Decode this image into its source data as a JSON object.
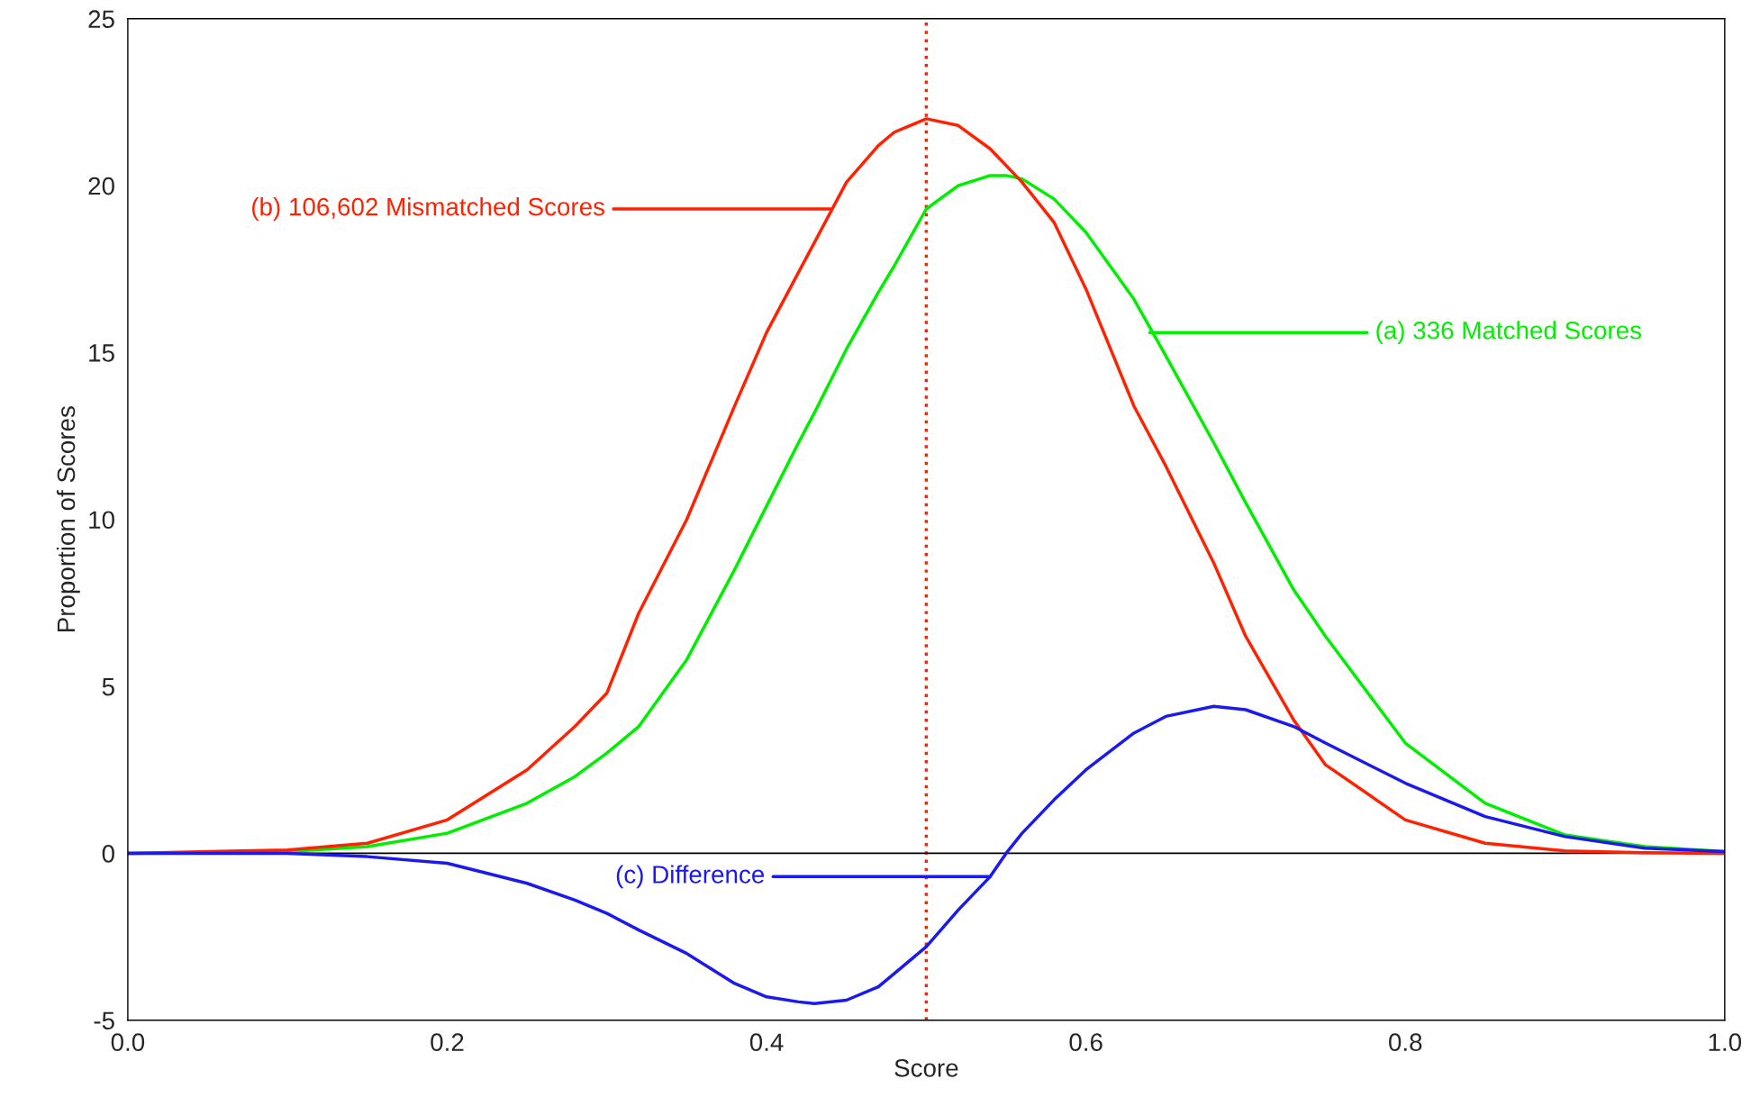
{
  "chart_data": {
    "type": "line",
    "xlabel": "Score",
    "ylabel": "Proportion of Scores",
    "x": [
      0,
      0.1,
      0.15,
      0.2,
      0.25,
      0.28,
      0.3,
      0.32,
      0.35,
      0.38,
      0.4,
      0.42,
      0.43,
      0.45,
      0.47,
      0.48,
      0.5,
      0.52,
      0.54,
      0.55,
      0.56,
      0.58,
      0.6,
      0.63,
      0.65,
      0.68,
      0.7,
      0.73,
      0.75,
      0.8,
      0.85,
      0.9,
      0.95,
      1.0
    ],
    "series": [
      {
        "color": "#00ee00",
        "values": [
          0,
          0.05,
          0.2,
          0.6,
          1.5,
          2.3,
          3.0,
          3.8,
          5.8,
          8.5,
          10.4,
          12.3,
          13.2,
          15.1,
          16.8,
          17.6,
          19.3,
          20.0,
          20.3,
          20.3,
          20.2,
          19.6,
          18.6,
          16.6,
          14.9,
          12.3,
          10.5,
          7.9,
          6.5,
          3.3,
          1.5,
          0.55,
          0.2,
          0.05
        ]
      },
      {
        "color": "#ff2200",
        "values": [
          0,
          0.1,
          0.3,
          1.0,
          2.5,
          3.8,
          4.8,
          7.2,
          10.0,
          13.4,
          15.6,
          17.4,
          18.3,
          20.1,
          21.2,
          21.6,
          22.0,
          21.8,
          21.1,
          20.6,
          20.1,
          18.9,
          16.9,
          13.4,
          11.6,
          8.7,
          6.5,
          4.0,
          2.65,
          1.0,
          0.3,
          0.07,
          0.02,
          0
        ]
      },
      {
        "color": "#1a1aee",
        "values": [
          0,
          0,
          -0.1,
          -0.3,
          -0.9,
          -1.4,
          -1.8,
          -2.3,
          -3.0,
          -3.9,
          -4.3,
          -4.45,
          -4.5,
          -4.4,
          -4.0,
          -3.6,
          -2.8,
          -1.7,
          -0.7,
          0.0,
          0.6,
          1.6,
          2.5,
          3.6,
          4.1,
          4.4,
          4.3,
          3.8,
          3.3,
          2.1,
          1.1,
          0.5,
          0.15,
          0.05
        ]
      }
    ],
    "annotations": [
      {
        "text": "(a) 336 Matched Scores",
        "x": 0.64,
        "y": 15.6
      },
      {
        "text": "(b) 106,602 Mismatched Scores",
        "x": 0.44,
        "y": 19.3
      },
      {
        "text": "(c) Difference",
        "x": 0.54,
        "y": -0.7
      }
    ],
    "ref_lines": [
      {
        "axis": "x",
        "value": 0.5,
        "color": "#ff2200",
        "line_style": "dotted"
      },
      {
        "axis": "y",
        "value": 0,
        "color": "#000000",
        "line_style": "solid"
      }
    ],
    "xlim": [
      0,
      1
    ],
    "ylim": [
      -5,
      25
    ],
    "xticks": [
      {
        "value": 0,
        "label": "0.0"
      },
      {
        "value": 0.2,
        "label": "0.2"
      },
      {
        "value": 0.4,
        "label": "0.4"
      },
      {
        "value": 0.6,
        "label": "0.6"
      },
      {
        "value": 0.8,
        "label": "0.8"
      },
      {
        "value": 1.0,
        "label": "1.0"
      }
    ],
    "yticks": [
      -5,
      0,
      5,
      10,
      15,
      20,
      25
    ],
    "grid": false,
    "legend": false,
    "marker": "none",
    "line_style": "solid"
  }
}
